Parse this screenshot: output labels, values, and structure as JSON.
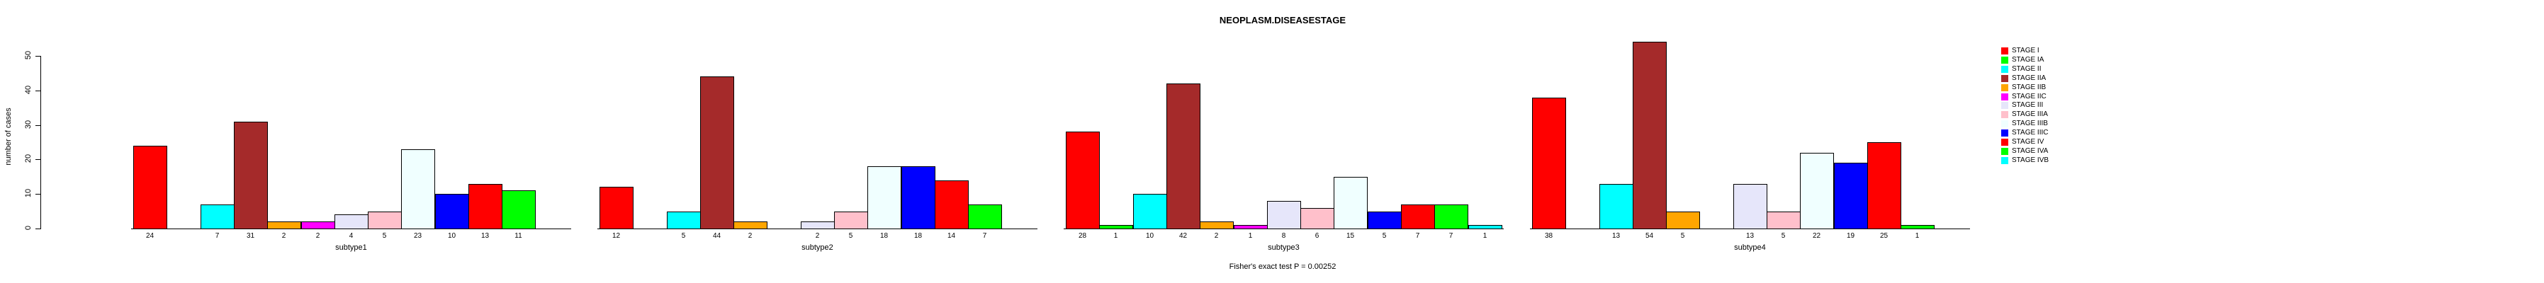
{
  "title": "NEOPLASM.DISEASESTAGE",
  "footer": "Fisher's exact test P = 0.00252",
  "chart_data": {
    "type": "bar",
    "title": "NEOPLASM.DISEASESTAGE",
    "xlabel": "",
    "ylabel": "number of cases",
    "ylim": [
      0,
      50
    ],
    "yticks": [
      0,
      10,
      20,
      30,
      40,
      50
    ],
    "grid": false,
    "legend_position": "right-outside",
    "annotation": "Fisher's exact test P = 0.00252",
    "series": [
      {
        "name": "STAGE I",
        "color": "#FF0000",
        "values": [
          24,
          12,
          28,
          38
        ]
      },
      {
        "name": "STAGE IA",
        "color": "#00FF00",
        "values": [
          0,
          0,
          1,
          0
        ]
      },
      {
        "name": "STAGE II",
        "color": "#00FFFF",
        "values": [
          7,
          5,
          10,
          13
        ]
      },
      {
        "name": "STAGE IIA",
        "color": "#A52A2A",
        "values": [
          31,
          44,
          42,
          54
        ]
      },
      {
        "name": "STAGE IIB",
        "color": "#FFA500",
        "values": [
          2,
          2,
          2,
          5
        ]
      },
      {
        "name": "STAGE IIC",
        "color": "#FF00FF",
        "values": [
          2,
          0,
          1,
          0
        ]
      },
      {
        "name": "STAGE III",
        "color": "#E6E6FA",
        "values": [
          4,
          2,
          8,
          13
        ]
      },
      {
        "name": "STAGE IIIA",
        "color": "#FFC0CB",
        "values": [
          5,
          5,
          6,
          5
        ]
      },
      {
        "name": "STAGE IIIB",
        "color": "#F0FFFF",
        "values": [
          23,
          18,
          15,
          22
        ]
      },
      {
        "name": "STAGE IIIC",
        "color": "#0000FF",
        "values": [
          10,
          18,
          5,
          19
        ]
      },
      {
        "name": "STAGE IV",
        "color": "#FF0000",
        "values": [
          13,
          14,
          7,
          25
        ]
      },
      {
        "name": "STAGE IVA",
        "color": "#00FF00",
        "values": [
          11,
          7,
          7,
          1
        ]
      },
      {
        "name": "STAGE IVB",
        "color": "#00FFFF",
        "values": [
          0,
          0,
          1,
          0
        ]
      }
    ],
    "categories": [
      "subtype1",
      "subtype2",
      "subtype3",
      "subtype4"
    ],
    "bar_value_labels_shown_only_when_nonzero": true
  }
}
